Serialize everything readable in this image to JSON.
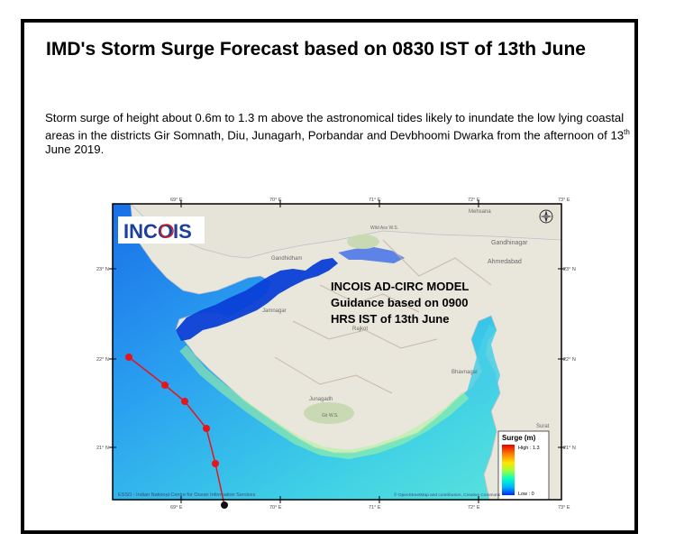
{
  "title": "IMD's Storm Surge Forecast based on 0830 IST of 13th June",
  "description": {
    "part1": "Storm surge of height about 0.6m to 1.3 m above the astronomical tides likely to inundate the low lying coastal areas in the districts Gir Somnath, Diu, Junagarh, Porbandar and Devbhoomi Dwarka from the afternoon of 13",
    "sup": "th",
    "part2": " June 2019."
  },
  "map": {
    "logo_text": "INCOIS",
    "model_label": [
      "INCOIS AD-CIRC MODEL",
      "Guidance based on 0900",
      "HRS IST of 13th June"
    ],
    "lon_ticks": [
      "69° E",
      "70° E",
      "71° E",
      "72° E",
      "73° E"
    ],
    "lat_ticks": [
      "23° N",
      "22° N",
      "21° N"
    ],
    "place_labels": [
      "Mehsana",
      "Gandhinagar",
      "Ahmedabad",
      "Bhavnagar",
      "Junagadh",
      "Rajkot",
      "Jamnagar",
      "Gandhidham",
      "Surat",
      "Gir W.S.",
      "Wild Ass W.S."
    ],
    "credit_left": "ESSO - Indian National Centre for Ocean Information Services",
    "credit_right": "© OpenStreetMap and contributors, Creative Commons",
    "legend": {
      "title": "Surge (m)",
      "high_label": "High : 1.3",
      "low_label": "Low : 0",
      "gradient": [
        "#e60000",
        "#ff7a00",
        "#ffe600",
        "#9aff3c",
        "#00ffc8",
        "#00b4ff",
        "#0028ff"
      ]
    },
    "colors": {
      "sea": "#2ea8f0",
      "land": "#e9e6dc",
      "surge": "#0a3fd6",
      "track": "#e8141a"
    }
  }
}
